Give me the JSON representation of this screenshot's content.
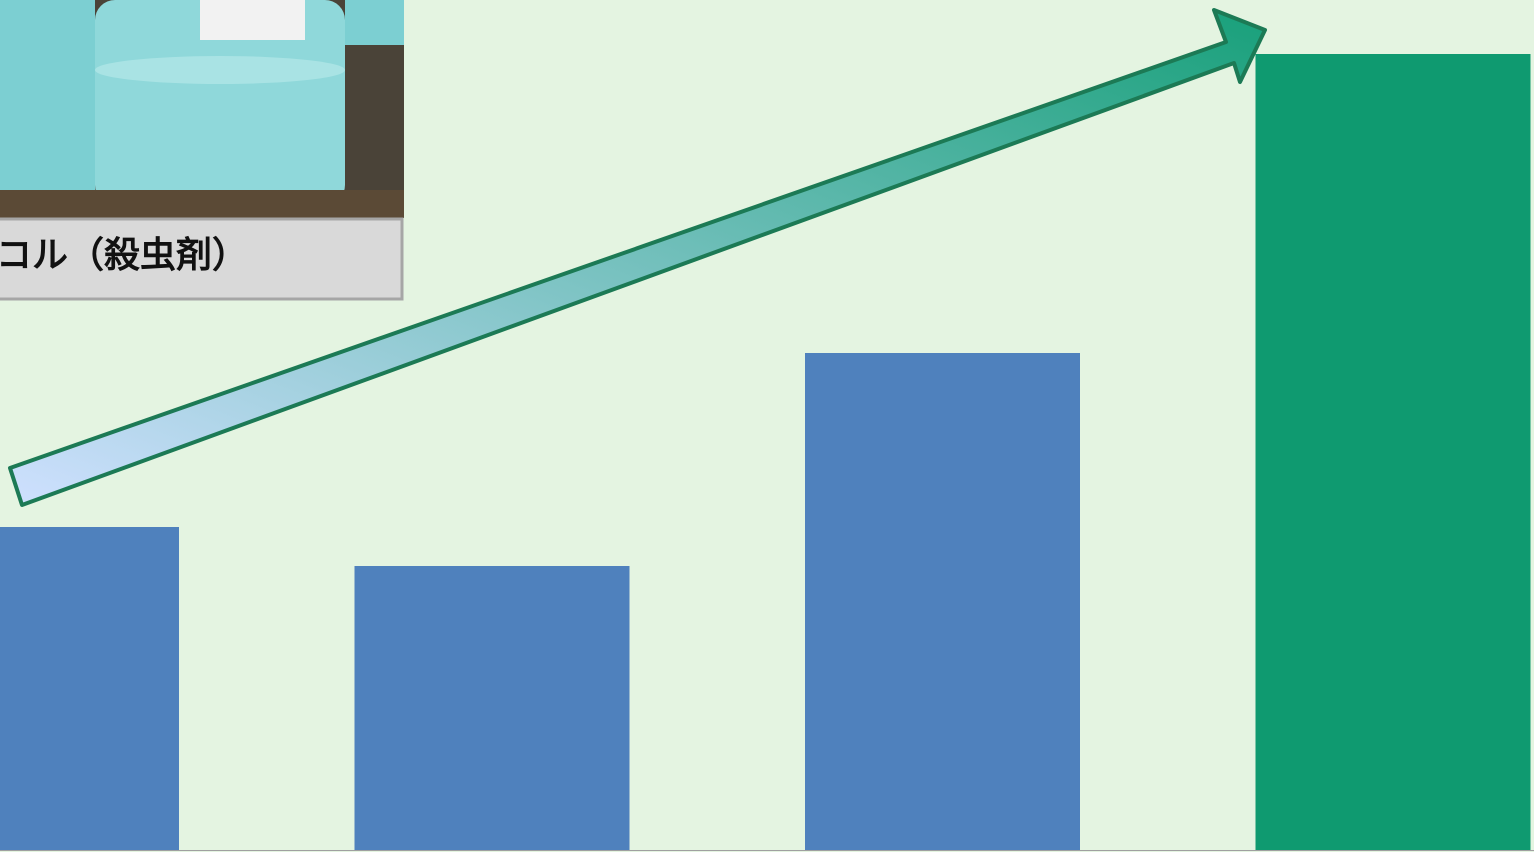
{
  "chart_data": {
    "type": "bar",
    "categories": [
      null,
      null,
      null,
      null
    ],
    "values": [
      323,
      284,
      497,
      796
    ],
    "colors": [
      "#4f81bd",
      "#4f81bd",
      "#4f81bd",
      "#0f9a70"
    ],
    "ylim": [
      0,
      850
    ],
    "annotations": [
      "コル（殺虫剤）"
    ]
  }
}
